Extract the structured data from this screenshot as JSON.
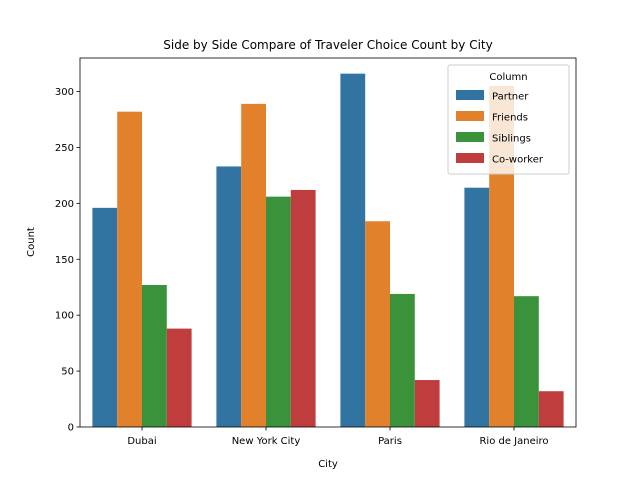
{
  "chart_data": {
    "type": "bar",
    "title": "Side by Side Compare of Traveler Choice Count by City",
    "xlabel": "City",
    "ylabel": "Count",
    "categories": [
      "Dubai",
      "New York City",
      "Paris",
      "Rio de Janeiro"
    ],
    "ylim": [
      0,
      330
    ],
    "yticks": [
      0,
      50,
      100,
      150,
      200,
      250,
      300
    ],
    "grid": false,
    "legend": {
      "title": "Column",
      "placement": "top-right"
    },
    "series": [
      {
        "name": "Partner",
        "color": "#3274a1",
        "values": [
          196,
          233,
          316,
          214
        ]
      },
      {
        "name": "Friends",
        "color": "#e1812c",
        "values": [
          282,
          289,
          184,
          305
        ]
      },
      {
        "name": "Siblings",
        "color": "#3a923a",
        "values": [
          127,
          206,
          119,
          117
        ]
      },
      {
        "name": "Co-worker",
        "color": "#c03d3e",
        "values": [
          88,
          212,
          42,
          32
        ]
      }
    ]
  }
}
